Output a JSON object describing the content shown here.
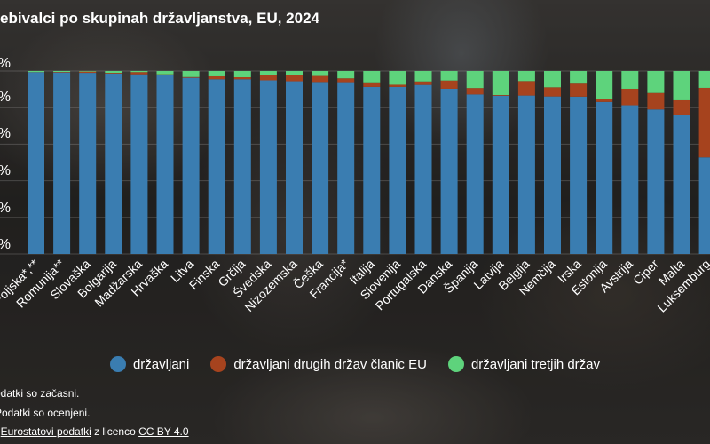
{
  "title": "ebivalci po skupinah državljanstva, EU, 2024",
  "y_ticks": [
    "0%",
    "%",
    "%",
    "%",
    "%",
    "%"
  ],
  "colors": {
    "nationals": "#3a7db1",
    "other_eu": "#a6431e",
    "third_country": "#5ed37c"
  },
  "legend": [
    {
      "label": "državljani",
      "color": "#3a7db1"
    },
    {
      "label": "državljani drugih držav članic EU",
      "color": "#a6431e"
    },
    {
      "label": "državljani tretjih držav",
      "color": "#5ed37c"
    }
  ],
  "footnotes": {
    "note1": "odatki so začasni.",
    "note2": "Podatki so ocenjeni.",
    "source_prefix": ": ",
    "source_link": "Eurostatovi podatki",
    "source_mid": " z licenco ",
    "license_link": "CC BY 4.0"
  },
  "chart_data": {
    "type": "bar",
    "stacked": true,
    "ylim": [
      0,
      100
    ],
    "categories": [
      "Poljska*,**",
      "Romunija**",
      "Slovaška",
      "Bolgarija",
      "Madžarska",
      "Hrvaška",
      "Litva",
      "Finska",
      "Grčija",
      "Švedska",
      "Nizozemska",
      "Češka",
      "Francija*",
      "Italija",
      "Slovenija",
      "Portugalska",
      "Danska",
      "Španija",
      "Latvija",
      "Belgija",
      "Nemčija",
      "Irska",
      "Estonija",
      "Avstrija",
      "Ciper",
      "Malta",
      "Luksemburg"
    ],
    "series": [
      {
        "name": "državljani",
        "values": [
          99.3,
          99.2,
          99.0,
          98.6,
          98.2,
          97.8,
          96.3,
          95.5,
          95.5,
          94.9,
          94.4,
          94.0,
          93.9,
          91.3,
          91.3,
          92.4,
          90.3,
          87.2,
          86.5,
          86.6,
          86.1,
          86.0,
          83.1,
          81.3,
          79.0,
          76.0,
          52.8
        ]
      },
      {
        "name": "državljani drugih držav članic EU",
        "values": [
          0.1,
          0.3,
          0.7,
          0.4,
          1.2,
          0.4,
          0.4,
          1.6,
          1.1,
          3.0,
          3.6,
          3.3,
          2.1,
          2.5,
          1.2,
          1.9,
          4.5,
          3.5,
          0.4,
          7.9,
          5.0,
          7.1,
          1.5,
          9.0,
          9.0,
          8.0,
          38.0
        ]
      },
      {
        "name": "državljani tretjih držav",
        "values": [
          0.6,
          0.5,
          0.3,
          1.0,
          0.6,
          1.8,
          3.3,
          2.9,
          3.4,
          2.1,
          2.0,
          2.7,
          4.0,
          6.2,
          7.5,
          5.7,
          5.2,
          9.3,
          13.1,
          5.5,
          8.9,
          6.9,
          15.4,
          9.7,
          12.0,
          16.0,
          9.2
        ]
      }
    ]
  }
}
